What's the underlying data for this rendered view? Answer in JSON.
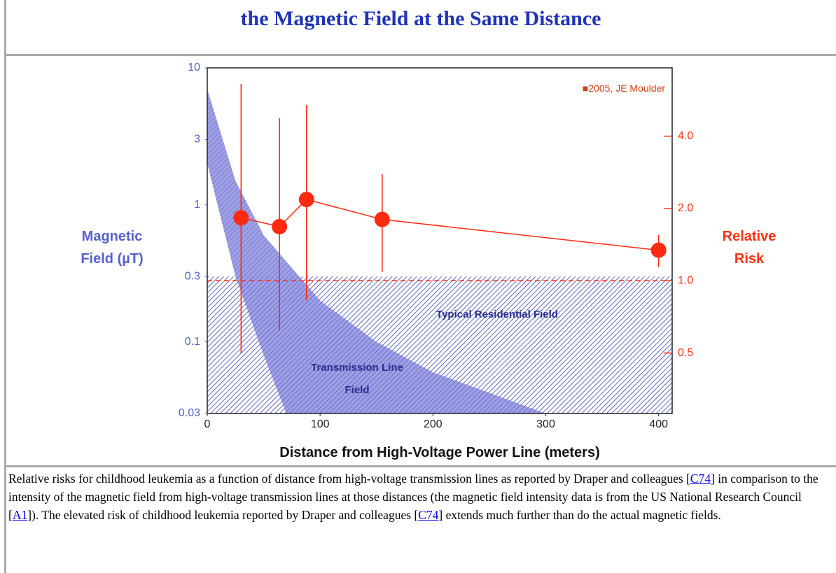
{
  "title": "the Magnetic Field at the Same Distance",
  "chart_data": {
    "type": "line",
    "xlabel": "Distance from High-Voltage Power Line (meters)",
    "ylabel": "Magnetic Field (µT)",
    "y2label": "Relative Risk",
    "xlim": [
      0,
      412
    ],
    "xticks": [
      0,
      100,
      200,
      300,
      400
    ],
    "ylim": [
      0.03,
      10
    ],
    "yticks": [
      10,
      3,
      1,
      0.3,
      0.1,
      0.03
    ],
    "ylog": true,
    "y2lim": [
      0.28,
      7.7
    ],
    "y2ticks": [
      {
        "value": 4,
        "label": "4.0"
      },
      {
        "value": 2,
        "label": "2.0"
      },
      {
        "value": 1,
        "label": "1.0"
      },
      0.5
    ],
    "y2log": true,
    "band": {
      "name": "Transmission Line Field",
      "color": "#8f8fe0",
      "upper": {
        "x": [
          0,
          25,
          50,
          100,
          150,
          200,
          300
        ],
        "values": [
          7,
          1.5,
          0.6,
          0.2,
          0.1,
          0.06,
          0.03
        ]
      },
      "lower": {
        "x": [
          0,
          25,
          50,
          70
        ],
        "values": [
          2,
          0.3,
          0.08,
          0.03
        ]
      }
    },
    "residential": {
      "label": "Typical Residential Field",
      "value": 0.3,
      "color": "#3a44b0"
    },
    "reference_line": {
      "axis": "y2",
      "value": 1,
      "color": "#ff2a10"
    },
    "series": [
      {
        "color": "#ff2a10",
        "axis": "y2",
        "x": [
          30,
          64,
          88,
          155,
          400
        ],
        "values": [
          1.83,
          1.68,
          2.18,
          1.8,
          1.34
        ],
        "lower": [
          0.5,
          0.62,
          0.83,
          1.09,
          1.14
        ],
        "upper": [
          6.6,
          4.76,
          5.4,
          2.78,
          1.55
        ]
      }
    ],
    "annotation": "■2005, JE Moulder",
    "ycolor": "#5560cc",
    "y2color": "#ff3010"
  },
  "caption": [
    "Relative risks for childhood leukemia as a function of distance from high-voltage transmission lines as reported by Draper and colleagues [",
    "C74",
    "] in comparison to the intensity of the magnetic field from high-voltage transmission lines at those distances (the magnetic field intensity data is from the US National Research Council [",
    "A1",
    "]). The elevated risk of childhood leukemia reported by Draper and colleagues [",
    "C74",
    "] extends much further than do the actual magnetic fields."
  ]
}
